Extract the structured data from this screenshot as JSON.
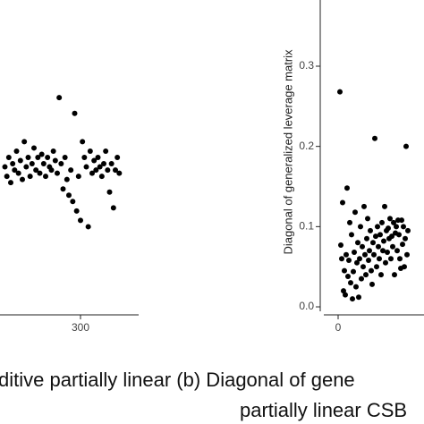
{
  "chart_data": [
    {
      "type": "scatter",
      "color": "#000000",
      "xlim": [
        0,
        360
      ],
      "ylim": [
        0,
        1
      ],
      "xticks": [
        300
      ],
      "series": [
        {
          "x": [
            222,
            224,
            226,
            228,
            230,
            232,
            234,
            236,
            238,
            240,
            242,
            244,
            246,
            248,
            250,
            252,
            254,
            256,
            258,
            260,
            262,
            264,
            266,
            268,
            270,
            272,
            274,
            276,
            278,
            280,
            282,
            284,
            286,
            288,
            290,
            292,
            294,
            296,
            298,
            300,
            302,
            304,
            306,
            308,
            310,
            312,
            314,
            316,
            318,
            320,
            322,
            324,
            326,
            328,
            330,
            332,
            334,
            336,
            338,
            340
          ],
          "values": [
            0.47,
            0.44,
            0.5,
            0.42,
            0.48,
            0.46,
            0.52,
            0.45,
            0.49,
            0.43,
            0.55,
            0.47,
            0.5,
            0.44,
            0.48,
            0.53,
            0.46,
            0.5,
            0.45,
            0.51,
            0.48,
            0.44,
            0.5,
            0.47,
            0.46,
            0.52,
            0.49,
            0.45,
            0.69,
            0.48,
            0.4,
            0.5,
            0.43,
            0.38,
            0.46,
            0.36,
            0.64,
            0.33,
            0.44,
            0.3,
            0.55,
            0.5,
            0.47,
            0.28,
            0.52,
            0.45,
            0.49,
            0.46,
            0.5,
            0.47,
            0.44,
            0.48,
            0.52,
            0.46,
            0.39,
            0.48,
            0.34,
            0.46,
            0.5,
            0.45
          ]
        }
      ]
    },
    {
      "type": "scatter",
      "color": "#000000",
      "ylabel": "Diagonal of generalized leverage matrix",
      "xlim": [
        -20,
        100
      ],
      "ylim": [
        -0.01,
        0.3825
      ],
      "xticks": [
        0
      ],
      "yticks": [
        {
          "value": 0,
          "label": "0.0"
        },
        0.1,
        0.2,
        0.3
      ],
      "series": [
        {
          "x": [
            2,
            3,
            4,
            5,
            6,
            7,
            8,
            9,
            10,
            11,
            12,
            13,
            14,
            15,
            16,
            17,
            18,
            19,
            20,
            21,
            22,
            23,
            24,
            25,
            26,
            27,
            28,
            29,
            30,
            31,
            32,
            33,
            34,
            35,
            36,
            37,
            38,
            39,
            40,
            41,
            42,
            43,
            44,
            45,
            46,
            47,
            48,
            49,
            50,
            51,
            52,
            53,
            54,
            55,
            56,
            57,
            58,
            59,
            60,
            61,
            62,
            63,
            64,
            65,
            66,
            67,
            68,
            69,
            70,
            71,
            72,
            73,
            74,
            75,
            76,
            77,
            78
          ],
          "values": [
            0.268,
            0.077,
            0.06,
            0.13,
            0.02,
            0.045,
            0.015,
            0.065,
            0.148,
            0.038,
            0.058,
            0.105,
            0.03,
            0.09,
            0.01,
            0.044,
            0.068,
            0.118,
            0.025,
            0.055,
            0.08,
            0.012,
            0.06,
            0.1,
            0.035,
            0.075,
            0.05,
            0.125,
            0.065,
            0.04,
            0.085,
            0.11,
            0.058,
            0.07,
            0.095,
            0.045,
            0.028,
            0.08,
            0.065,
            0.21,
            0.088,
            0.05,
            0.1,
            0.075,
            0.06,
            0.09,
            0.04,
            0.105,
            0.07,
            0.082,
            0.125,
            0.055,
            0.095,
            0.068,
            0.098,
            0.085,
            0.11,
            0.06,
            0.088,
            0.075,
            0.105,
            0.04,
            0.092,
            0.1,
            0.07,
            0.108,
            0.09,
            0.06,
            0.048,
            0.108,
            0.078,
            0.1,
            0.05,
            0.085,
            0.2,
            0.065,
            0.095
          ]
        }
      ]
    }
  ],
  "captions": [
    "ditive partially linear (b) Diagonal of gene",
    "partially linear CSB"
  ]
}
